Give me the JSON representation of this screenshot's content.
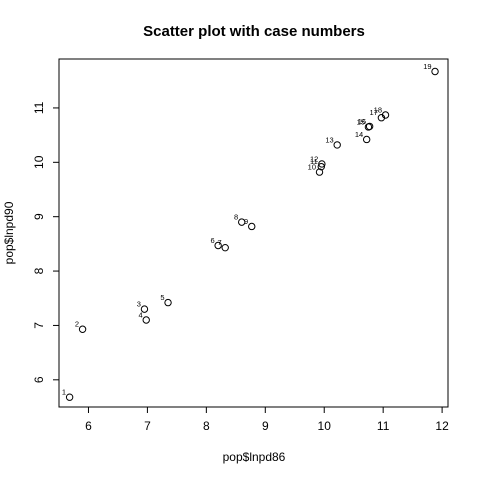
{
  "chart_data": {
    "type": "scatter",
    "title": "Scatter plot with case numbers",
    "xlabel": "pop$lnpd86",
    "ylabel": "pop$lnpd90",
    "xlim": [
      5.5,
      12.1
    ],
    "ylim": [
      5.5,
      11.9
    ],
    "xticks": [
      6,
      7,
      8,
      9,
      10,
      11,
      12
    ],
    "yticks": [
      6,
      7,
      8,
      9,
      10,
      11
    ],
    "grid": false,
    "points": [
      {
        "label": "1",
        "x": 5.68,
        "y": 5.68
      },
      {
        "label": "2",
        "x": 5.9,
        "y": 6.93
      },
      {
        "label": "3",
        "x": 6.95,
        "y": 7.3
      },
      {
        "label": "4",
        "x": 6.98,
        "y": 7.1
      },
      {
        "label": "5",
        "x": 7.35,
        "y": 7.42
      },
      {
        "label": "6",
        "x": 8.2,
        "y": 8.47
      },
      {
        "label": "7",
        "x": 8.32,
        "y": 8.43
      },
      {
        "label": "8",
        "x": 8.6,
        "y": 8.9
      },
      {
        "label": "9",
        "x": 8.77,
        "y": 8.82
      },
      {
        "label": "10",
        "x": 9.92,
        "y": 9.82
      },
      {
        "label": "11",
        "x": 9.95,
        "y": 9.92
      },
      {
        "label": "12",
        "x": 9.96,
        "y": 9.97
      },
      {
        "label": "13",
        "x": 10.22,
        "y": 10.32
      },
      {
        "label": "14",
        "x": 10.72,
        "y": 10.42
      },
      {
        "label": "15",
        "x": 10.75,
        "y": 10.65
      },
      {
        "label": "16",
        "x": 10.77,
        "y": 10.66
      },
      {
        "label": "17",
        "x": 10.97,
        "y": 10.82
      },
      {
        "label": "18",
        "x": 11.04,
        "y": 10.87
      },
      {
        "label": "19",
        "x": 11.88,
        "y": 11.67
      }
    ]
  }
}
